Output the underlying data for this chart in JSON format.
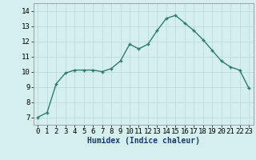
{
  "x": [
    0,
    1,
    2,
    3,
    4,
    5,
    6,
    7,
    8,
    9,
    10,
    11,
    12,
    13,
    14,
    15,
    16,
    17,
    18,
    19,
    20,
    21,
    22,
    23
  ],
  "y": [
    7.0,
    7.3,
    9.2,
    9.9,
    10.1,
    10.1,
    10.1,
    10.0,
    10.2,
    10.7,
    11.8,
    11.5,
    11.8,
    12.7,
    13.5,
    13.7,
    13.2,
    12.7,
    12.1,
    11.4,
    10.7,
    10.3,
    10.1,
    8.9
  ],
  "line_color": "#2d7d6d",
  "marker": "+",
  "marker_size": 3.5,
  "bg_color": "#d5eeee",
  "grid_color": "#b8d8d8",
  "xlabel": "Humidex (Indice chaleur)",
  "xlabel_fontsize": 7,
  "tick_fontsize": 6.5,
  "ylim": [
    6.5,
    14.5
  ],
  "xlim": [
    -0.5,
    23.5
  ],
  "yticks": [
    7,
    8,
    9,
    10,
    11,
    12,
    13,
    14
  ],
  "xticks": [
    0,
    1,
    2,
    3,
    4,
    5,
    6,
    7,
    8,
    9,
    10,
    11,
    12,
    13,
    14,
    15,
    16,
    17,
    18,
    19,
    20,
    21,
    22,
    23
  ],
  "line_width": 1.0,
  "line_color_dark": "#1a5c50",
  "xlabel_color": "#1a3a6e",
  "xlabel_bold": true
}
